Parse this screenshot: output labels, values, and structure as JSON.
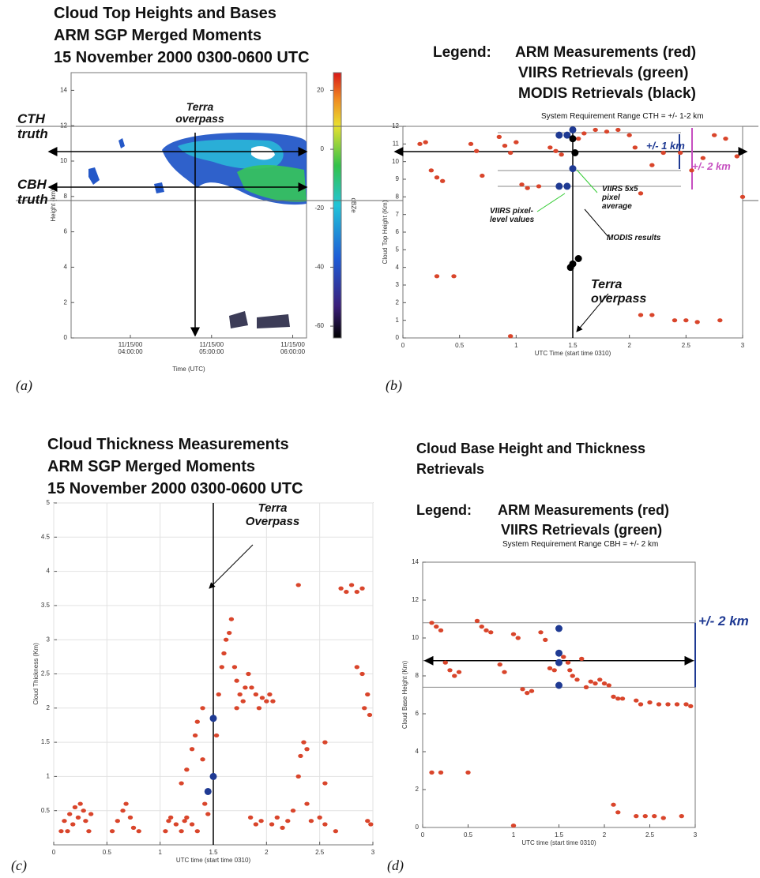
{
  "chart_data": [
    {
      "type": "heatmap",
      "title": [
        "Cloud Top Heights and Bases",
        "ARM SGP Merged Moments",
        "15 November 2000 0300-0600 UTC"
      ],
      "panel_label": "(a)",
      "xlabel": "Time (UTC)",
      "ylabel": "Height (km)",
      "xlim": [
        3.27,
        6.17
      ],
      "xticks": [
        {
          "value": 4,
          "label": "11/15/00 04:00:00"
        },
        {
          "value": 5,
          "label": "11/15/00 05:00:00"
        },
        {
          "value": 6,
          "label": "11/15/00 06:00:00"
        }
      ],
      "ylim": [
        0,
        15
      ],
      "yticks": [
        0,
        2,
        4,
        6,
        8,
        10,
        12,
        14
      ],
      "colorbar": {
        "label": "dBZe",
        "lim": [
          -64,
          26
        ],
        "ticks": [
          20,
          0,
          -20,
          -40,
          -60
        ]
      },
      "annotations": [
        "Terra overpass",
        "CTH truth",
        "CBH truth"
      ]
    },
    {
      "type": "scatter",
      "legend_title": "Legend:",
      "subtitle": "System Requirement Range CTH = +/- 1-2 km",
      "panel_label": "(b)",
      "xlabel": "UTC Time (start time 0310)",
      "ylabel": "Cloud Top Height (Km)",
      "xlim": [
        0,
        3
      ],
      "xticks": [
        0,
        0.5,
        1,
        1.5,
        2,
        2.5,
        3
      ],
      "ylim": [
        0,
        12
      ],
      "yticks": [
        0,
        1,
        2,
        3,
        4,
        5,
        6,
        7,
        8,
        9,
        10,
        11,
        12
      ],
      "grid": false,
      "series": [
        {
          "name": "ARM Measurements (red)",
          "color": "#d9452b",
          "x": [
            0.15,
            0.2,
            0.25,
            0.3,
            0.35,
            0.6,
            0.65,
            0.7,
            0.85,
            0.9,
            0.95,
            1.0,
            1.05,
            1.1,
            1.2,
            1.3,
            1.35,
            1.4,
            1.55,
            1.6,
            1.7,
            1.8,
            1.9,
            2.0,
            2.05,
            2.1,
            2.2,
            2.3,
            2.45,
            2.55,
            2.65,
            2.75,
            2.85,
            2.95,
            3.0,
            2.1,
            2.2,
            2.4,
            2.5,
            2.6,
            2.8,
            0.95,
            0.3,
            0.45
          ],
          "values": [
            11,
            11.1,
            9.5,
            9.1,
            8.9,
            11,
            10.6,
            9.2,
            11.4,
            10.9,
            10.5,
            11.1,
            8.7,
            8.5,
            8.6,
            10.8,
            10.6,
            10.4,
            11.3,
            11.6,
            11.8,
            11.7,
            11.8,
            11.5,
            10.8,
            8.2,
            9.8,
            10.5,
            10.5,
            9.5,
            10.2,
            11.5,
            11.3,
            10.3,
            8.0,
            1.3,
            1.3,
            1.0,
            1.0,
            0.9,
            1.0,
            0.1,
            3.5,
            3.5
          ]
        },
        {
          "name": "VIIRS Retrievals (green)",
          "color": "#1f3a93",
          "x": [
            1.38,
            1.45,
            1.5,
            1.5,
            1.38,
            1.45
          ],
          "values": [
            11.5,
            11.5,
            11.8,
            9.6,
            8.6,
            8.6
          ]
        },
        {
          "name": "MODIS Retrievals (black)",
          "color": "#000000",
          "x": [
            1.5,
            1.52,
            1.48,
            1.5,
            1.55
          ],
          "values": [
            11.3,
            10.5,
            4.0,
            4.2,
            4.5
          ]
        }
      ],
      "annotations": [
        "+/- 1 km",
        "+/- 2 km",
        "VIIRS 5x5 pixel average",
        "VIIRS pixel-level values",
        "MODIS results",
        "Terra overpass"
      ]
    },
    {
      "type": "scatter",
      "title": [
        "Cloud Thickness Measurements",
        "ARM SGP Merged Moments",
        "15 November 2000 0300-0600 UTC"
      ],
      "panel_label": "(c)",
      "xlabel": "UTC time (start time 0310)",
      "ylabel": "Cloud Thickness (Km)",
      "xlim": [
        0,
        3
      ],
      "xticks": [
        0,
        0.5,
        1,
        1.5,
        2,
        2.5,
        3
      ],
      "ylim": [
        0,
        5
      ],
      "yticks": [
        0.5,
        1,
        1.5,
        2,
        2.5,
        3,
        3.5,
        4,
        4.5,
        5
      ],
      "grid": true,
      "series": [
        {
          "color": "#d9452b",
          "x": [
            0.07,
            0.1,
            0.13,
            0.15,
            0.18,
            0.2,
            0.23,
            0.25,
            0.28,
            0.3,
            0.33,
            0.35,
            0.55,
            0.6,
            0.65,
            0.68,
            0.72,
            0.75,
            0.8,
            1.05,
            1.08,
            1.1,
            1.15,
            1.2,
            1.23,
            1.25,
            1.3,
            1.35,
            1.2,
            1.25,
            1.3,
            1.33,
            1.35,
            1.4,
            1.4,
            1.42,
            1.45,
            1.53,
            1.55,
            1.58,
            1.6,
            1.62,
            1.65,
            1.67,
            1.7,
            1.72,
            1.75,
            1.78,
            1.8,
            1.83,
            1.86,
            1.9,
            1.93,
            1.96,
            2.0,
            2.03,
            2.06,
            1.72,
            1.85,
            1.9,
            1.95,
            2.05,
            2.1,
            2.15,
            2.2,
            2.25,
            2.3,
            2.32,
            2.35,
            2.38,
            2.3,
            2.38,
            2.42,
            2.5,
            2.55,
            2.65,
            2.55,
            2.55,
            2.7,
            2.75,
            2.8,
            2.85,
            2.9,
            2.85,
            2.9,
            2.95,
            2.92,
            2.97,
            2.98,
            2.95
          ],
          "values": [
            0.2,
            0.35,
            0.2,
            0.45,
            0.3,
            0.55,
            0.4,
            0.6,
            0.5,
            0.35,
            0.2,
            0.45,
            0.2,
            0.35,
            0.5,
            0.6,
            0.4,
            0.25,
            0.2,
            0.2,
            0.35,
            0.4,
            0.3,
            0.2,
            0.35,
            0.4,
            0.3,
            0.2,
            0.9,
            1.1,
            1.4,
            1.6,
            1.8,
            2.0,
            1.25,
            0.6,
            0.45,
            1.6,
            2.2,
            2.6,
            2.8,
            3.0,
            3.1,
            3.3,
            2.6,
            2.4,
            2.2,
            2.1,
            2.3,
            2.5,
            2.3,
            2.2,
            2.0,
            2.15,
            2.1,
            2.2,
            2.1,
            2.0,
            0.4,
            0.3,
            0.35,
            0.3,
            0.4,
            0.25,
            0.35,
            0.5,
            1.0,
            1.3,
            1.5,
            1.4,
            3.8,
            0.6,
            0.35,
            0.4,
            0.3,
            0.2,
            1.5,
            0.9,
            3.75,
            3.7,
            3.8,
            3.7,
            3.75,
            2.6,
            2.5,
            2.2,
            2.0,
            1.9,
            0.3,
            0.35
          ]
        },
        {
          "color": "#1f3a93",
          "x": [
            1.45,
            1.5,
            1.5
          ],
          "values": [
            0.78,
            1.0,
            1.85
          ]
        }
      ],
      "annotations": [
        "Terra Overpass"
      ]
    },
    {
      "type": "scatter",
      "title": [
        "Cloud Base Height and Thickness",
        "Retrievals"
      ],
      "legend_title": "Legend:",
      "subtitle": "System Requirement Range CBH = +/- 2 km",
      "panel_label": "(d)",
      "xlabel": "UTC time (start time 0310)",
      "ylabel": "Cloud Base Height (Km)",
      "xlim": [
        0,
        3
      ],
      "xticks": [
        0,
        0.5,
        1,
        1.5,
        2,
        2.5,
        3
      ],
      "ylim": [
        0,
        14
      ],
      "yticks": [
        0,
        2,
        4,
        6,
        8,
        10,
        12,
        14
      ],
      "grid": false,
      "series": [
        {
          "name": "ARM Measurements (red)",
          "color": "#d9452b",
          "x": [
            0.1,
            0.15,
            0.2,
            0.25,
            0.3,
            0.35,
            0.4,
            0.6,
            0.65,
            0.7,
            0.75,
            0.85,
            0.9,
            1.0,
            1.05,
            1.1,
            1.15,
            1.2,
            1.3,
            1.35,
            1.4,
            1.45,
            1.55,
            1.6,
            1.62,
            1.65,
            1.7,
            1.75,
            1.8,
            1.85,
            1.9,
            1.95,
            2.0,
            2.05,
            2.1,
            2.15,
            2.2,
            2.35,
            2.4,
            2.5,
            2.6,
            2.7,
            2.8,
            2.9,
            2.95,
            2.1,
            2.15,
            2.35,
            2.45,
            2.55,
            2.65,
            2.85,
            1.0,
            0.5,
            0.2,
            0.1
          ],
          "values": [
            10.8,
            10.6,
            10.4,
            8.7,
            8.3,
            8.0,
            8.2,
            10.9,
            10.6,
            10.4,
            10.3,
            8.6,
            8.2,
            10.2,
            10.0,
            7.3,
            7.1,
            7.2,
            10.3,
            9.9,
            8.4,
            8.3,
            9.0,
            8.7,
            8.3,
            8.0,
            7.8,
            8.9,
            7.4,
            7.7,
            7.6,
            7.8,
            7.6,
            7.5,
            6.9,
            6.8,
            6.8,
            6.7,
            6.5,
            6.6,
            6.5,
            6.5,
            6.5,
            6.5,
            6.4,
            1.2,
            0.8,
            0.6,
            0.6,
            0.6,
            0.5,
            0.6,
            0.1,
            2.9,
            2.9,
            2.9
          ]
        },
        {
          "name": "VIIRS Retrievals (green)",
          "color": "#1f3a93",
          "x": [
            1.5,
            1.5,
            1.5,
            1.5
          ],
          "values": [
            10.5,
            9.2,
            8.7,
            7.5
          ]
        }
      ],
      "annotations": [
        "+/- 2 km"
      ]
    }
  ]
}
